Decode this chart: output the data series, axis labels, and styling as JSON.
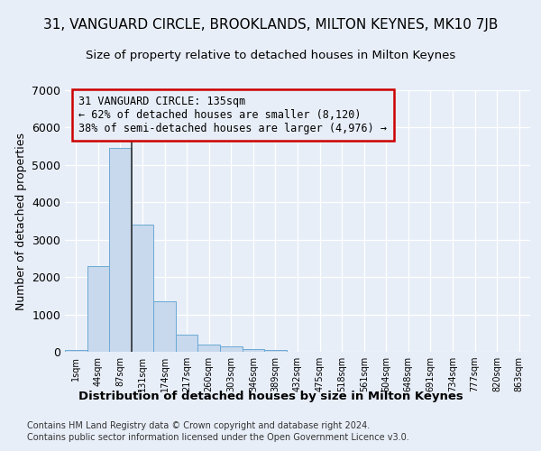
{
  "title": "31, VANGUARD CIRCLE, BROOKLANDS, MILTON KEYNES, MK10 7JB",
  "subtitle": "Size of property relative to detached houses in Milton Keynes",
  "xlabel": "Distribution of detached houses by size in Milton Keynes",
  "ylabel": "Number of detached properties",
  "footnote1": "Contains HM Land Registry data © Crown copyright and database right 2024.",
  "footnote2": "Contains public sector information licensed under the Open Government Licence v3.0.",
  "annotation_line1": "31 VANGUARD CIRCLE: 135sqm",
  "annotation_line2": "← 62% of detached houses are smaller (8,120)",
  "annotation_line3": "38% of semi-detached houses are larger (4,976) →",
  "bar_values": [
    50,
    2300,
    5450,
    3400,
    1350,
    450,
    200,
    150,
    75,
    50,
    0,
    0,
    0,
    0,
    0,
    0,
    0,
    0,
    0,
    0,
    0
  ],
  "bin_labels": [
    "1sqm",
    "44sqm",
    "87sqm",
    "131sqm",
    "174sqm",
    "217sqm",
    "260sqm",
    "303sqm",
    "346sqm",
    "389sqm",
    "432sqm",
    "475sqm",
    "518sqm",
    "561sqm",
    "604sqm",
    "648sqm",
    "691sqm",
    "734sqm",
    "777sqm",
    "820sqm",
    "863sqm"
  ],
  "bar_color": "#c8d8ed",
  "bar_edge_color": "#6aaad4",
  "background_color": "#e8eef8",
  "marker_color": "#333333",
  "annotation_box_color": "#cc0000",
  "ylim": [
    0,
    7000
  ],
  "marker_bin_index": 3
}
